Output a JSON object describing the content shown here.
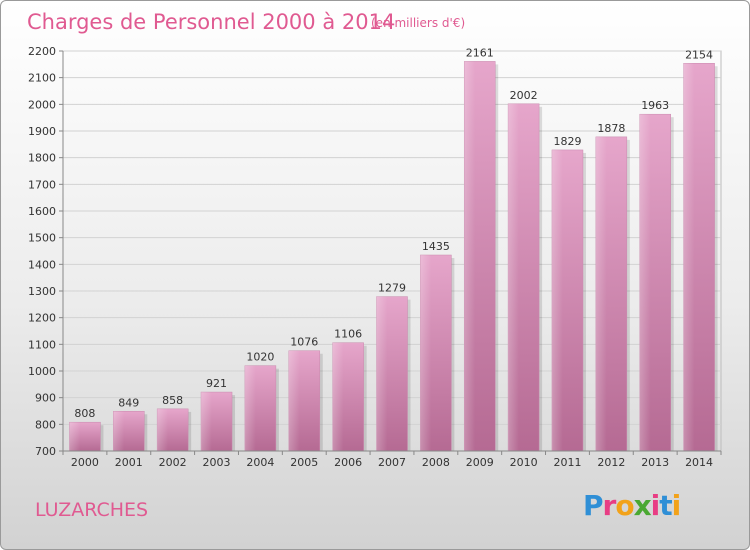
{
  "chart_data": {
    "type": "bar",
    "title": "Charges de Personnel 2000 à 2014",
    "subtitle": "(en milliers d'€)",
    "categories": [
      "2000",
      "2001",
      "2002",
      "2003",
      "2004",
      "2005",
      "2006",
      "2007",
      "2008",
      "2009",
      "2010",
      "2011",
      "2012",
      "2013",
      "2014"
    ],
    "values": [
      808,
      849,
      858,
      921,
      1020,
      1076,
      1106,
      1279,
      1435,
      2161,
      2002,
      1829,
      1878,
      1963,
      2154
    ],
    "ylim": [
      700,
      2200
    ],
    "yticks": [
      700,
      800,
      900,
      1000,
      1100,
      1200,
      1300,
      1400,
      1500,
      1600,
      1700,
      1800,
      1900,
      2000,
      2100,
      2200
    ],
    "grid": true,
    "bar_color": "#d98fb8"
  },
  "footer": {
    "place": "LUZARCHES",
    "brand_letters": [
      "P",
      "r",
      "o",
      "x",
      "i",
      "t",
      "i"
    ],
    "brand_colors": [
      "#2f8fd6",
      "#e83d84",
      "#f2a21a",
      "#4aa832",
      "#e83d84",
      "#2f8fd6",
      "#f2a21a"
    ]
  }
}
